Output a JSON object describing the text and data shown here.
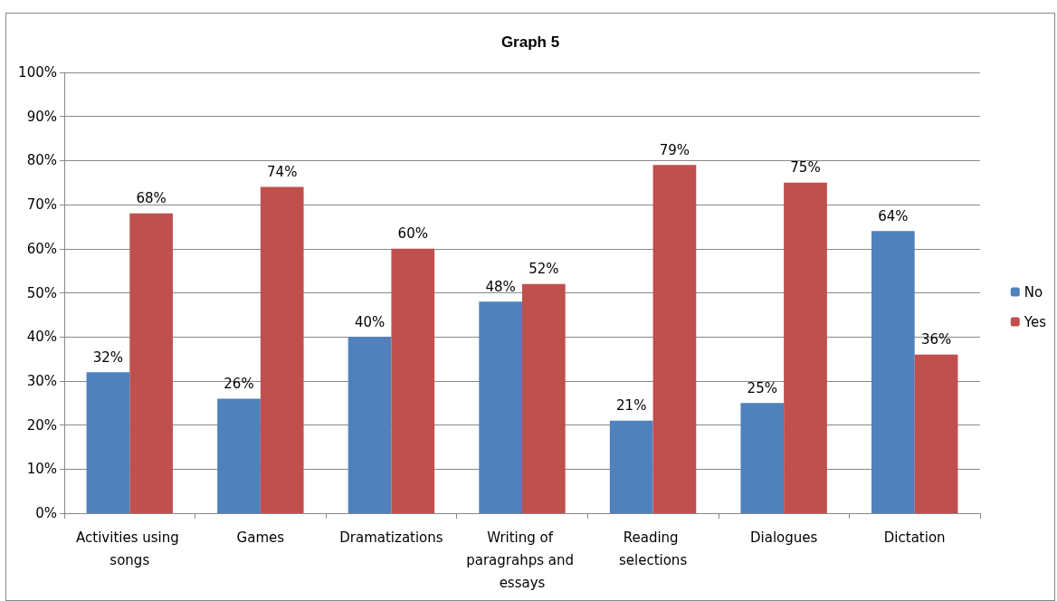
{
  "chart_data": {
    "type": "bar",
    "title": "Graph 5",
    "categories": [
      "Activities using songs",
      "Games",
      "Dramatizations",
      "Writing of paragrahps and essays",
      "Reading selections",
      "Dialogues",
      "Dictation"
    ],
    "series": [
      {
        "name": "No",
        "color": "#4f81bd",
        "values": [
          32,
          26,
          40,
          48,
          21,
          25,
          64
        ],
        "value_labels": [
          "32%",
          "26%",
          "40%",
          "48%",
          "21%",
          "25%",
          "64%"
        ]
      },
      {
        "name": "Yes",
        "color": "#c0504d",
        "values": [
          68,
          74,
          60,
          52,
          79,
          75,
          36
        ],
        "value_labels": [
          "68%",
          "74%",
          "60%",
          "52%",
          "79%",
          "75%",
          "36%"
        ]
      }
    ],
    "ylim": [
      0,
      100
    ],
    "yticks": [
      {
        "value": 0,
        "label": "0%"
      },
      {
        "value": 10,
        "label": "10%"
      },
      {
        "value": 20,
        "label": "20%"
      },
      {
        "value": 30,
        "label": "30%"
      },
      {
        "value": 40,
        "label": "40%"
      },
      {
        "value": 50,
        "label": "50%"
      },
      {
        "value": 60,
        "label": "60%"
      },
      {
        "value": 70,
        "label": "70%"
      },
      {
        "value": 80,
        "label": "80%"
      },
      {
        "value": 90,
        "label": "90%"
      },
      {
        "value": 100,
        "label": "100%"
      }
    ],
    "grid": "y",
    "legend": "right"
  }
}
